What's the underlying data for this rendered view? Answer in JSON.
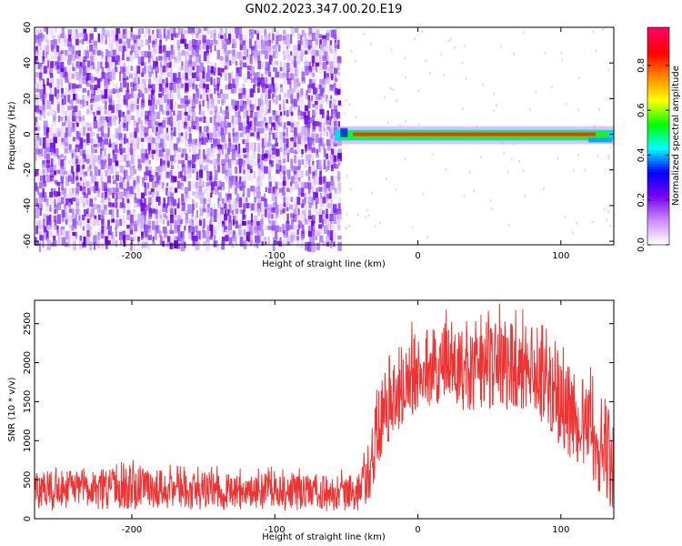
{
  "title": "GN02.2023.347.00.20.E19",
  "chart_data": [
    {
      "type": "heatmap",
      "xlabel": "Height of straight line (km)",
      "ylabel": "Frequency (Hz)",
      "xlim": [
        -268,
        137
      ],
      "ylim": [
        -62,
        60
      ],
      "x_ticks": [
        -200,
        -100,
        0,
        100
      ],
      "y_ticks": [
        -60,
        -40,
        -20,
        0,
        20,
        40,
        60
      ],
      "colorbar": {
        "label": "Normalized spectral amplitude",
        "range": [
          0,
          0.97
        ],
        "ticks": [
          0.0,
          0.2,
          0.4,
          0.6,
          0.8
        ],
        "colormap": [
          "#ffffff",
          "#cc88ff",
          "#7700ee",
          "#0000ff",
          "#00ffff",
          "#00ff00",
          "#ffff00",
          "#ff8800",
          "#ff0000",
          "#ff0066"
        ]
      },
      "regions": [
        {
          "desc": "broadband noise",
          "x": [
            -268,
            -55
          ],
          "freq": [
            -60,
            60
          ],
          "amplitude": 0.1
        },
        {
          "desc": "narrow line",
          "x": [
            -58,
            137
          ],
          "freq": [
            -2,
            2
          ],
          "amplitude": 0.9
        }
      ]
    },
    {
      "type": "line",
      "xlabel": "Height of straight line (km)",
      "ylabel": "SNR (10 * v/v)",
      "xlim": [
        -268,
        137
      ],
      "ylim": [
        0,
        2800
      ],
      "x_ticks": [
        -200,
        -100,
        0,
        100
      ],
      "y_ticks": [
        0,
        500,
        1000,
        1500,
        2000,
        2500
      ],
      "color": "#ee3333",
      "envelope": {
        "x": [
          -268,
          -200,
          -150,
          -100,
          -60,
          -40,
          -32,
          -28,
          -20,
          0,
          20,
          40,
          60,
          80,
          100,
          120,
          137
        ],
        "mean": [
          370,
          390,
          360,
          340,
          330,
          360,
          700,
          1050,
          1400,
          1800,
          2000,
          1850,
          1900,
          1850,
          1400,
          1000,
          800
        ],
        "upper": [
          600,
          650,
          600,
          580,
          560,
          600,
          1200,
          1600,
          2100,
          2400,
          2500,
          2400,
          2550,
          2500,
          2100,
          1700,
          1500
        ],
        "lower": [
          100,
          120,
          110,
          100,
          90,
          100,
          300,
          700,
          1000,
          1400,
          1500,
          1300,
          1400,
          1300,
          900,
          500,
          50
        ]
      }
    }
  ]
}
